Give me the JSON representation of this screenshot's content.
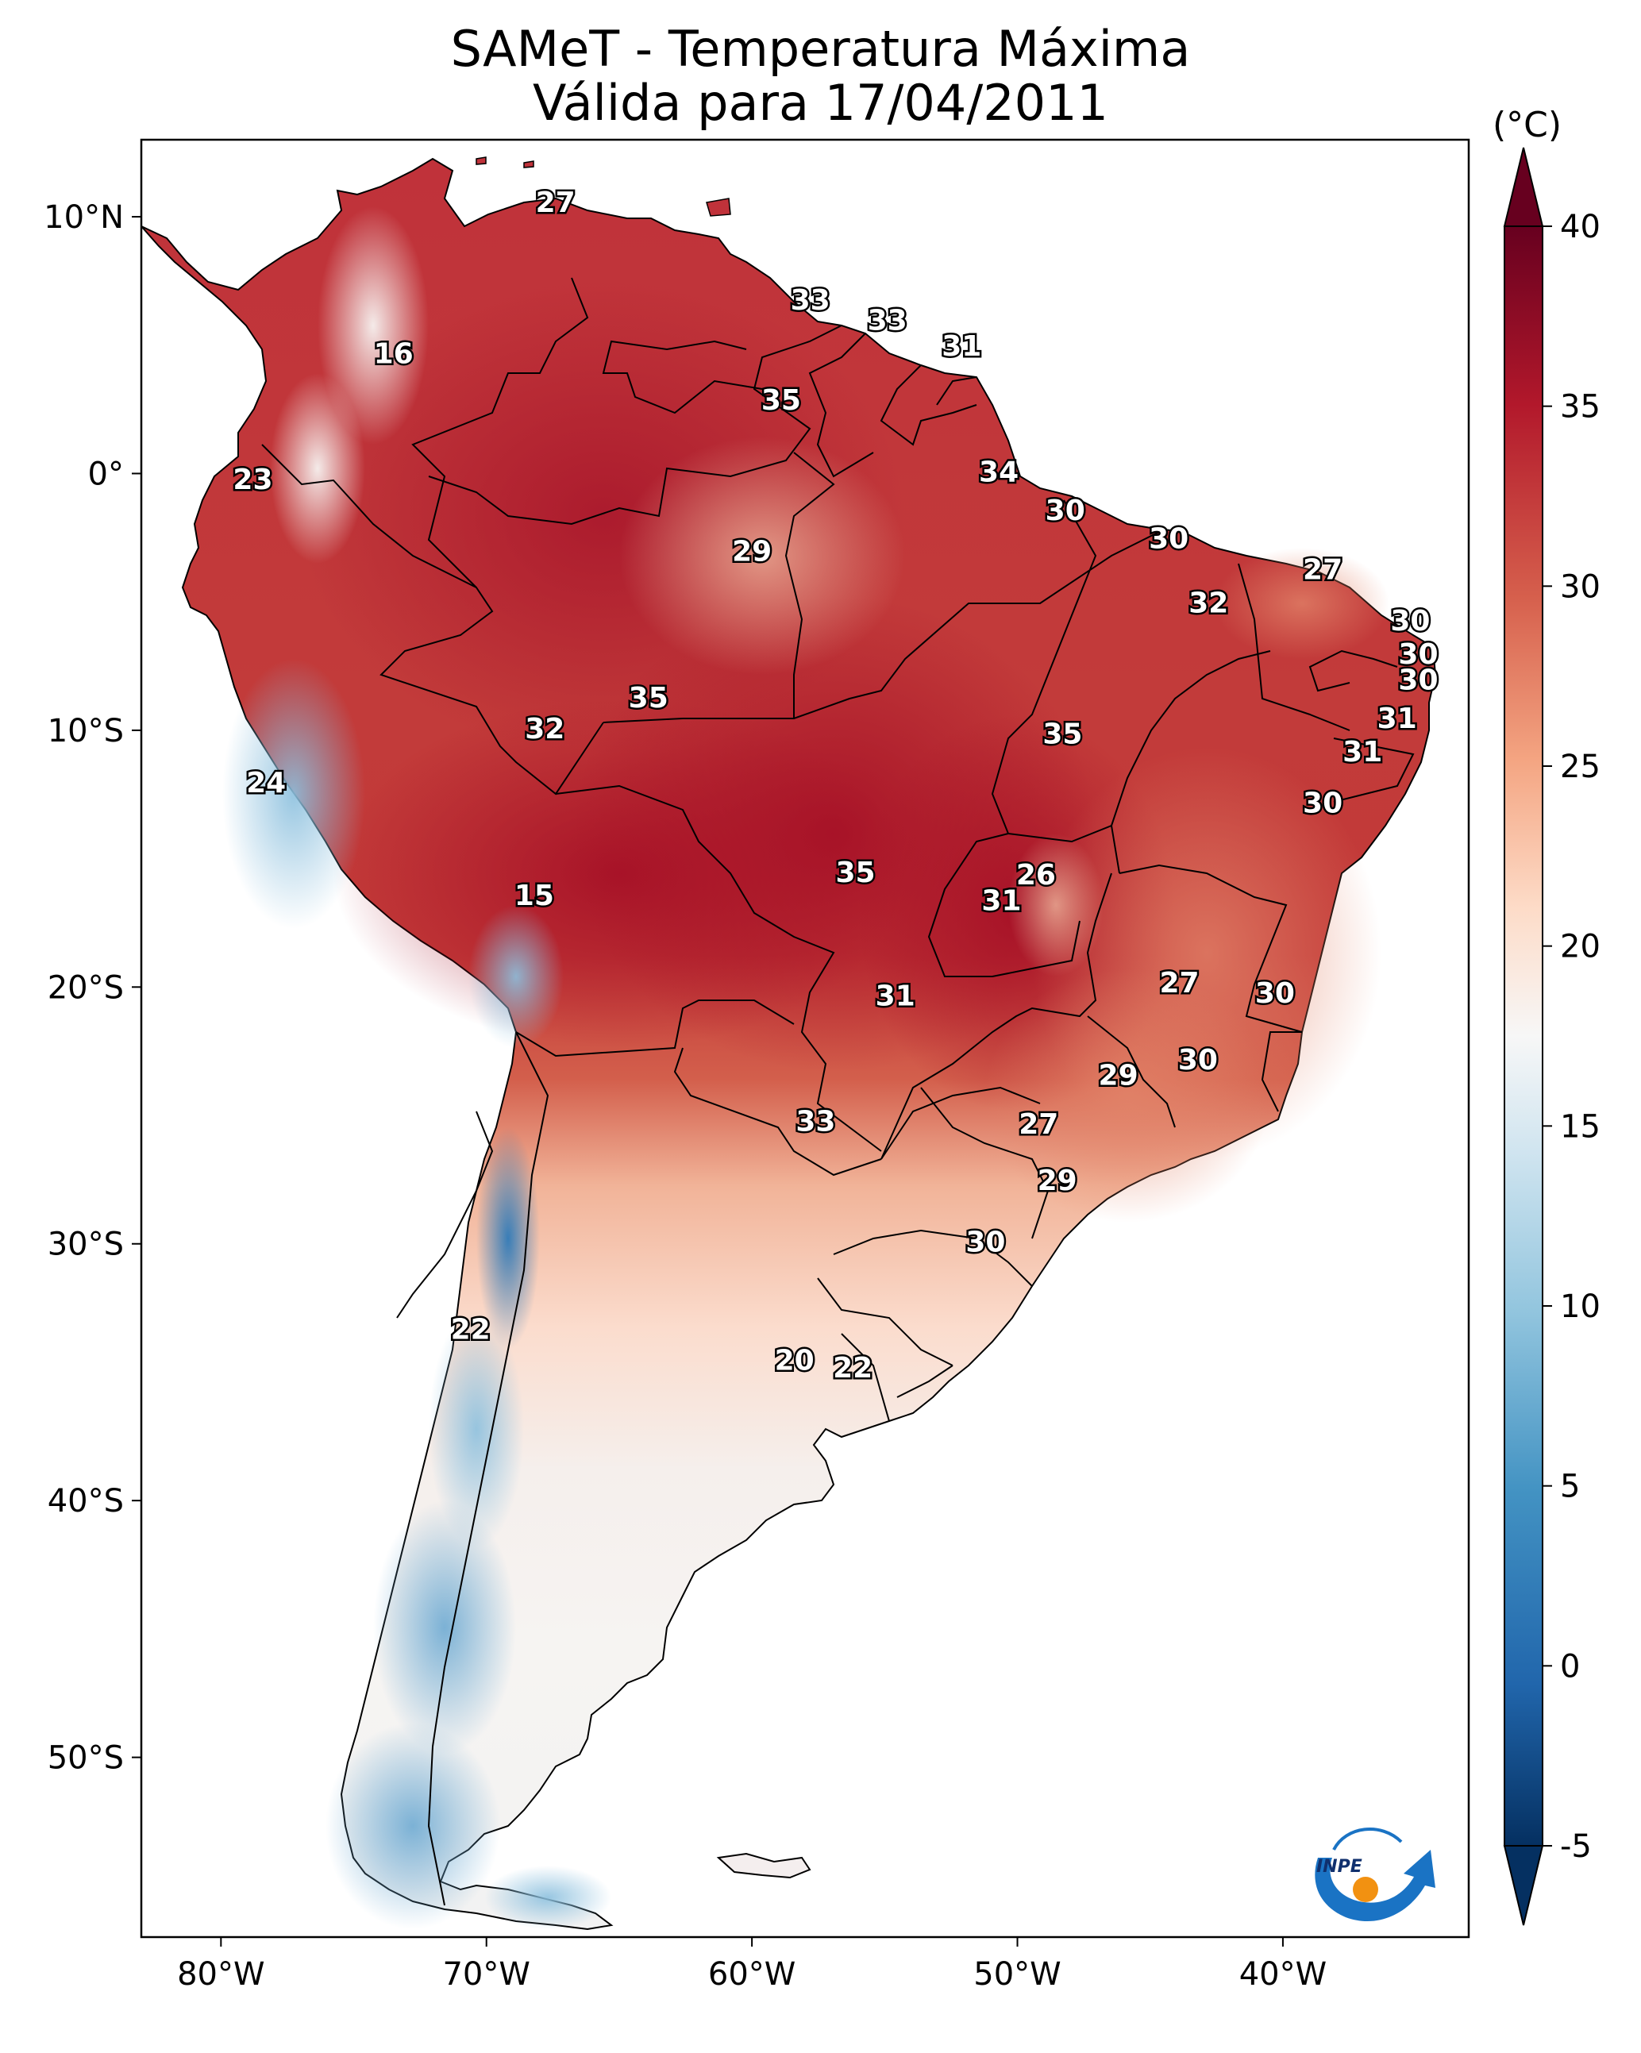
{
  "title": {
    "line1": "SAMeT - Temperatura Máxima",
    "line2": "Válida para 17/04/2011"
  },
  "map": {
    "lon_range": [
      -83,
      -33
    ],
    "lat_range": [
      -57,
      13
    ],
    "x_ticks": [
      {
        "lon": -80,
        "label": "80°W"
      },
      {
        "lon": -70,
        "label": "70°W"
      },
      {
        "lon": -60,
        "label": "60°W"
      },
      {
        "lon": -50,
        "label": "50°W"
      },
      {
        "lon": -40,
        "label": "40°W"
      }
    ],
    "y_ticks": [
      {
        "lat": 10,
        "label": "10°N"
      },
      {
        "lat": 0,
        "label": "0°"
      },
      {
        "lat": -10,
        "label": "10°S"
      },
      {
        "lat": -20,
        "label": "20°S"
      },
      {
        "lat": -30,
        "label": "30°S"
      },
      {
        "lat": -40,
        "label": "40°S"
      },
      {
        "lat": -50,
        "label": "50°S"
      }
    ]
  },
  "stations": [
    {
      "lon": -67.4,
      "lat": 10.5,
      "value": "27"
    },
    {
      "lon": -73.5,
      "lat": 4.6,
      "value": "16"
    },
    {
      "lon": -57.8,
      "lat": 6.7,
      "value": "33"
    },
    {
      "lon": -54.9,
      "lat": 5.9,
      "value": "33"
    },
    {
      "lon": -52.1,
      "lat": 4.9,
      "value": "31"
    },
    {
      "lon": -58.9,
      "lat": 2.8,
      "value": "35"
    },
    {
      "lon": -78.8,
      "lat": -0.3,
      "value": "23"
    },
    {
      "lon": -50.7,
      "lat": 0.0,
      "value": "34"
    },
    {
      "lon": -48.2,
      "lat": -1.5,
      "value": "30"
    },
    {
      "lon": -44.3,
      "lat": -2.6,
      "value": "30"
    },
    {
      "lon": -60.0,
      "lat": -3.1,
      "value": "29"
    },
    {
      "lon": -38.5,
      "lat": -3.8,
      "value": "27"
    },
    {
      "lon": -42.8,
      "lat": -5.1,
      "value": "32"
    },
    {
      "lon": -35.2,
      "lat": -5.8,
      "value": "30"
    },
    {
      "lon": -34.9,
      "lat": -7.1,
      "value": "30"
    },
    {
      "lon": -34.9,
      "lat": -8.1,
      "value": "30"
    },
    {
      "lon": -63.9,
      "lat": -8.8,
      "value": "35"
    },
    {
      "lon": -67.8,
      "lat": -10.0,
      "value": "32"
    },
    {
      "lon": -35.7,
      "lat": -9.6,
      "value": "31"
    },
    {
      "lon": -48.3,
      "lat": -10.2,
      "value": "35"
    },
    {
      "lon": -37.0,
      "lat": -10.9,
      "value": "31"
    },
    {
      "lon": -38.5,
      "lat": -12.9,
      "value": "30"
    },
    {
      "lon": -78.3,
      "lat": -12.1,
      "value": "24"
    },
    {
      "lon": -56.1,
      "lat": -15.6,
      "value": "35"
    },
    {
      "lon": -49.3,
      "lat": -15.7,
      "value": "26"
    },
    {
      "lon": -50.6,
      "lat": -16.7,
      "value": "31"
    },
    {
      "lon": -68.2,
      "lat": -16.5,
      "value": "15"
    },
    {
      "lon": -43.9,
      "lat": -19.9,
      "value": "27"
    },
    {
      "lon": -40.3,
      "lat": -20.3,
      "value": "30"
    },
    {
      "lon": -54.6,
      "lat": -20.4,
      "value": "31"
    },
    {
      "lon": -43.2,
      "lat": -22.9,
      "value": "30"
    },
    {
      "lon": -46.2,
      "lat": -23.5,
      "value": "29"
    },
    {
      "lon": -57.6,
      "lat": -25.3,
      "value": "33"
    },
    {
      "lon": -49.2,
      "lat": -25.4,
      "value": "27"
    },
    {
      "lon": -48.5,
      "lat": -27.6,
      "value": "29"
    },
    {
      "lon": -51.2,
      "lat": -30.0,
      "value": "30"
    },
    {
      "lon": -70.6,
      "lat": -33.4,
      "value": "22"
    },
    {
      "lon": -58.4,
      "lat": -34.6,
      "value": "20"
    },
    {
      "lon": -56.2,
      "lat": -34.9,
      "value": "22"
    }
  ],
  "colorbar": {
    "unit": "(°C)",
    "min": -5,
    "max": 40,
    "ticks": [
      {
        "value": 40,
        "label": "40"
      },
      {
        "value": 35,
        "label": "35"
      },
      {
        "value": 30,
        "label": "30"
      },
      {
        "value": 25,
        "label": "25"
      },
      {
        "value": 20,
        "label": "20"
      },
      {
        "value": 15,
        "label": "15"
      },
      {
        "value": 10,
        "label": "10"
      },
      {
        "value": 5,
        "label": "5"
      },
      {
        "value": 0,
        "label": "0"
      },
      {
        "value": -5,
        "label": "-5"
      }
    ],
    "colors": {
      "dark_red": "#67001f",
      "red": "#b2182b",
      "mid_red": "#d6604d",
      "light_red": "#f4a582",
      "pale_red": "#fddbc7",
      "white": "#f7f7f7",
      "pale_blue": "#d1e5f0",
      "light_blue": "#92c5de",
      "mid_blue": "#4393c3",
      "blue": "#2166ac",
      "dark_blue": "#053061"
    }
  },
  "logo": {
    "text": "INPE",
    "colors": {
      "blue": "#1a73c4",
      "orange": "#f29111"
    }
  }
}
